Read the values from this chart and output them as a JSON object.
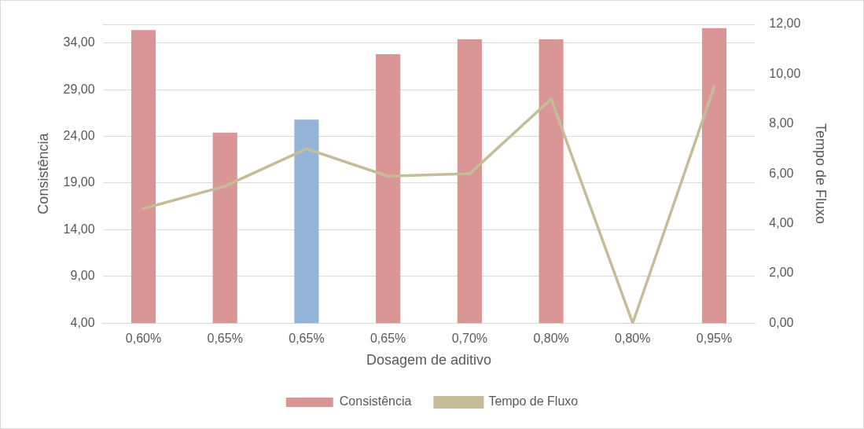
{
  "chart_data": {
    "type": "bar",
    "xlabel": "Dosagem de aditivo",
    "ylabel": "Consistência",
    "y2label": "Tempo de Fluxo",
    "categories": [
      "0,60%",
      "0,65%",
      "0,65%",
      "0,65%",
      "0,70%",
      "0,80%",
      "0,80%",
      "0,95%"
    ],
    "series": [
      {
        "name": "Consistência",
        "color": "#d99694",
        "colors": [
          "#d99694",
          "#d99694",
          "#95b3d7",
          "#d99694",
          "#d99694",
          "#d99694",
          "#d99694",
          "#d99694"
        ],
        "values": [
          35.4,
          24.4,
          25.8,
          32.8,
          34.4,
          34.4,
          4.0,
          35.6
        ]
      },
      {
        "name": "Tempo de Fluxo",
        "type": "line",
        "axis": "y2",
        "color": "#c4bd97",
        "values": [
          4.6,
          5.5,
          7.0,
          5.9,
          6.0,
          9.0,
          0.0,
          9.5
        ]
      }
    ],
    "ylim": [
      4,
      36
    ],
    "yticks": [
      {
        "value": 4,
        "label": "4,00"
      },
      {
        "value": 9,
        "label": "9,00"
      },
      {
        "value": 14,
        "label": "14,00"
      },
      {
        "value": 19,
        "label": "19,00"
      },
      {
        "value": 24,
        "label": "24,00"
      },
      {
        "value": 29,
        "label": "29,00"
      },
      {
        "value": 34,
        "label": "34,00"
      }
    ],
    "y2lim": [
      0,
      12
    ],
    "y2ticks": [
      {
        "value": 0,
        "label": "0,00"
      },
      {
        "value": 2,
        "label": "2,00"
      },
      {
        "value": 4,
        "label": "4,00"
      },
      {
        "value": 6,
        "label": "6,00"
      },
      {
        "value": 8,
        "label": "8,00"
      },
      {
        "value": 10,
        "label": "10,00"
      },
      {
        "value": 12,
        "label": "12,00"
      }
    ],
    "grid": "y",
    "legend": "bottom",
    "marker": "none",
    "line_style": "solid"
  }
}
